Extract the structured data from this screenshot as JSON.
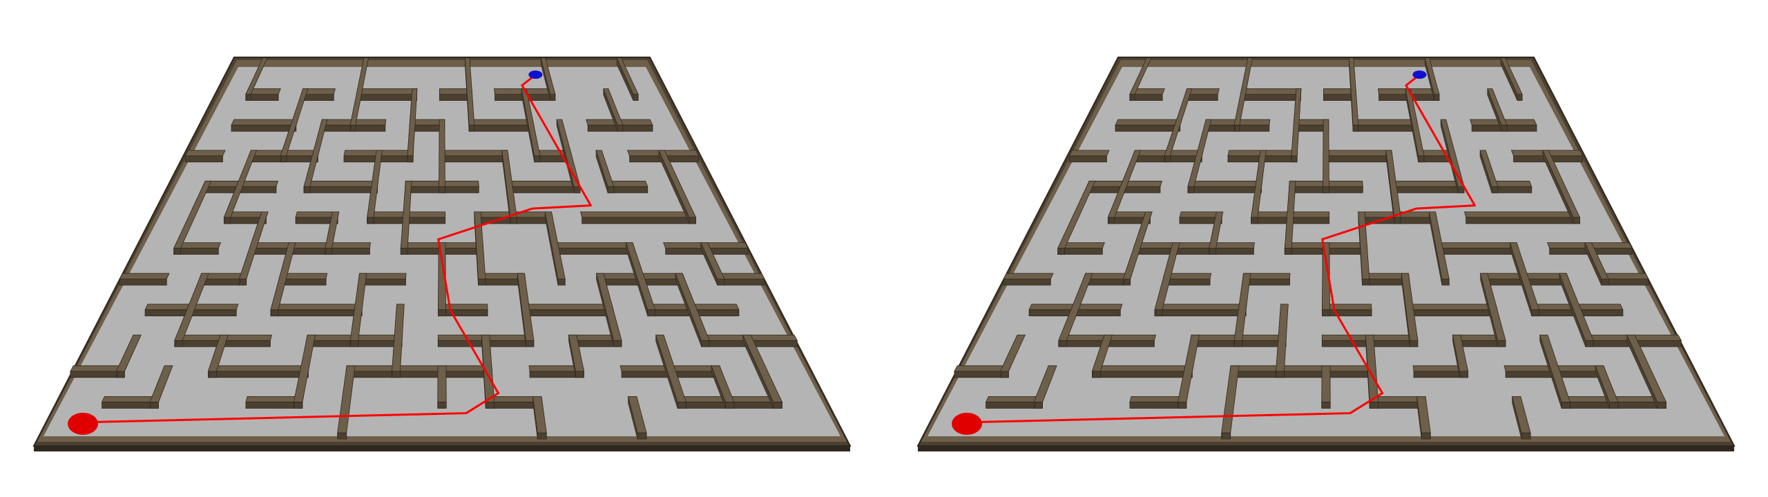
{
  "scene": {
    "description_label": "",
    "views": [
      {
        "id": "left-view"
      },
      {
        "id": "right-view"
      }
    ]
  },
  "colors": {
    "background": "#ffffff",
    "floor": "#b4b4b4",
    "wall_top": "#6e5f4a",
    "wall_side": "#4c4130",
    "wall_edge": "#2f281e",
    "path": "#ff0000",
    "start_marker": "#e00000",
    "goal_marker": "#1010d0"
  },
  "icons": {
    "start": "red-start-disc",
    "goal": "blue-goal-disc"
  }
}
